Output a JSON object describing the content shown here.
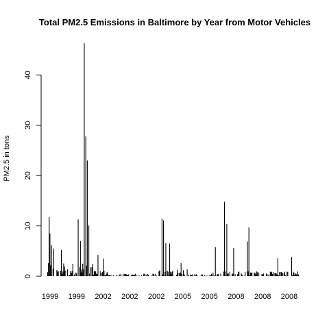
{
  "chart_data": {
    "type": "bar",
    "title": "Total PM2.5 Emissions in Baltimore by Year from Motor Vehicles",
    "xlabel": "",
    "ylabel": "PM2.5 in tons",
    "ylim": [
      0,
      47
    ],
    "y_ticks": [
      0,
      10,
      20,
      30,
      40
    ],
    "x_tick_labels": [
      "1999",
      "1999",
      "2002",
      "2002",
      "2002",
      "2005",
      "2005",
      "2008",
      "2008",
      "2008"
    ],
    "grid": false,
    "legend": "none",
    "bar_color": "#000000",
    "peaks": [
      {
        "position": 2,
        "value": 11.8
      },
      {
        "position": 3,
        "value": 8.5
      },
      {
        "position": 5,
        "value": 6.2
      },
      {
        "position": 8,
        "value": 5.5
      },
      {
        "position": 18,
        "value": 5.2
      },
      {
        "position": 40,
        "value": 11.3
      },
      {
        "position": 43,
        "value": 7.0
      },
      {
        "position": 48,
        "value": 46.3
      },
      {
        "position": 50,
        "value": 27.8
      },
      {
        "position": 52,
        "value": 23.0
      },
      {
        "position": 54,
        "value": 10.1
      },
      {
        "position": 66,
        "value": 4.2
      },
      {
        "position": 73,
        "value": 3.5
      },
      {
        "position": 150,
        "value": 11.4
      },
      {
        "position": 152,
        "value": 11.1
      },
      {
        "position": 155,
        "value": 6.6
      },
      {
        "position": 160,
        "value": 6.5
      },
      {
        "position": 175,
        "value": 2.6
      },
      {
        "position": 220,
        "value": 5.8
      },
      {
        "position": 232,
        "value": 14.8
      },
      {
        "position": 235,
        "value": 10.4
      },
      {
        "position": 244,
        "value": 5.6
      },
      {
        "position": 262,
        "value": 6.9
      },
      {
        "position": 264,
        "value": 9.7
      },
      {
        "position": 302,
        "value": 3.6
      },
      {
        "position": 320,
        "value": 3.8
      }
    ],
    "total_positions": 330
  }
}
